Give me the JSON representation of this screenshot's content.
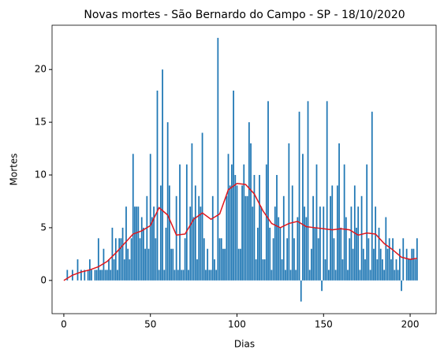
{
  "chart_data": {
    "type": "bar",
    "title": "Novas mortes - São Bernardo do Campo - SP - 18/10/2020",
    "xlabel": "Dias",
    "ylabel": "Mortes",
    "xlim": [
      -6.8,
      215
    ],
    "ylim": [
      -3.15,
      24.2
    ],
    "xticks": [
      0,
      50,
      100,
      150,
      200
    ],
    "yticks": [
      0,
      5,
      10,
      15,
      20
    ],
    "series": [
      {
        "type": "bar",
        "color": "#1f77b4",
        "x": [
          0,
          1,
          2,
          3,
          4,
          5,
          6,
          7,
          8,
          9,
          10,
          11,
          12,
          13,
          14,
          15,
          16,
          17,
          18,
          19,
          20,
          21,
          22,
          23,
          24,
          25,
          26,
          27,
          28,
          29,
          30,
          31,
          32,
          33,
          34,
          35,
          36,
          37,
          38,
          39,
          40,
          41,
          42,
          43,
          44,
          45,
          46,
          47,
          48,
          49,
          50,
          51,
          52,
          53,
          54,
          55,
          56,
          57,
          58,
          59,
          60,
          61,
          62,
          63,
          64,
          65,
          66,
          67,
          68,
          69,
          70,
          71,
          72,
          73,
          74,
          75,
          76,
          77,
          78,
          79,
          80,
          81,
          82,
          83,
          84,
          85,
          86,
          87,
          88,
          89,
          90,
          91,
          92,
          93,
          94,
          95,
          96,
          97,
          98,
          99,
          100,
          101,
          102,
          103,
          104,
          105,
          106,
          107,
          108,
          109,
          110,
          111,
          112,
          113,
          114,
          115,
          116,
          117,
          118,
          119,
          120,
          121,
          122,
          123,
          124,
          125,
          126,
          127,
          128,
          129,
          130,
          131,
          132,
          133,
          134,
          135,
          136,
          137,
          138,
          139,
          140,
          141,
          142,
          143,
          144,
          145,
          146,
          147,
          148,
          149,
          150,
          151,
          152,
          153,
          154,
          155,
          156,
          157,
          158,
          159,
          160,
          161,
          162,
          163,
          164,
          165,
          166,
          167,
          168,
          169,
          170,
          171,
          172,
          173,
          174,
          175,
          176,
          177,
          178,
          179,
          180,
          181,
          182,
          183,
          184,
          185,
          186,
          187,
          188,
          189,
          190,
          191,
          192,
          193,
          194,
          195,
          196,
          197,
          198,
          199,
          200,
          201,
          202,
          203,
          204
        ],
        "values": [
          0,
          0,
          1,
          0,
          0,
          1,
          0,
          0,
          2,
          0,
          1,
          0,
          1,
          0,
          1,
          2,
          1,
          0,
          1,
          1,
          4,
          1,
          1,
          3,
          1,
          1,
          2,
          1,
          5,
          2,
          4,
          1,
          4,
          4,
          5,
          2,
          7,
          3,
          2,
          4,
          12,
          7,
          7,
          7,
          4,
          6,
          5,
          3,
          8,
          3,
          12,
          6,
          7,
          4,
          18,
          1,
          9,
          20,
          1,
          5,
          15,
          9,
          3,
          3,
          1,
          8,
          1,
          11,
          1,
          1,
          4,
          11,
          1,
          7,
          13,
          6,
          9,
          2,
          8,
          7,
          14,
          4,
          1,
          3,
          1,
          1,
          8,
          2,
          1,
          23,
          4,
          4,
          3,
          3,
          8,
          12,
          9,
          11,
          18,
          10,
          9,
          3,
          3,
          9,
          11,
          8,
          8,
          15,
          13,
          7,
          10,
          2,
          5,
          10,
          7,
          2,
          2,
          11,
          17,
          5,
          1,
          4,
          7,
          10,
          6,
          5,
          2,
          8,
          1,
          4,
          13,
          1,
          9,
          4,
          1,
          6,
          16,
          -2,
          12,
          7,
          6,
          17,
          1,
          3,
          8,
          5,
          11,
          4,
          7,
          -1,
          7,
          2,
          17,
          1,
          8,
          9,
          4,
          1,
          9,
          13,
          5,
          2,
          11,
          6,
          1,
          4,
          7,
          3,
          9,
          5,
          7,
          1,
          8,
          3,
          2,
          11,
          4,
          1,
          16,
          3,
          7,
          2,
          5,
          3,
          2,
          1,
          6,
          3,
          4,
          2,
          4,
          1,
          2,
          1,
          3,
          -1,
          4,
          0,
          3,
          2,
          2,
          3,
          3,
          2,
          4
        ]
      },
      {
        "type": "line",
        "color": "#e0161c",
        "x": [
          0,
          5,
          10,
          15,
          20,
          25,
          30,
          35,
          40,
          45,
          50,
          55,
          60,
          65,
          70,
          75,
          80,
          85,
          90,
          95,
          100,
          105,
          110,
          115,
          120,
          125,
          130,
          135,
          140,
          145,
          150,
          155,
          160,
          165,
          170,
          175,
          180,
          185,
          190,
          195,
          200,
          204
        ],
        "values": [
          0,
          0.5,
          0.8,
          1.0,
          1.3,
          1.8,
          2.6,
          3.5,
          4.4,
          4.7,
          5.2,
          6.9,
          6.2,
          4.3,
          4.4,
          5.8,
          6.4,
          5.8,
          6.3,
          8.6,
          9.2,
          9.1,
          8.2,
          6.6,
          5.4,
          5.0,
          5.4,
          5.6,
          5.1,
          5.0,
          4.9,
          4.8,
          4.9,
          4.8,
          4.3,
          4.5,
          4.4,
          3.5,
          2.9,
          2.2,
          2.0,
          2.1
        ]
      }
    ]
  }
}
